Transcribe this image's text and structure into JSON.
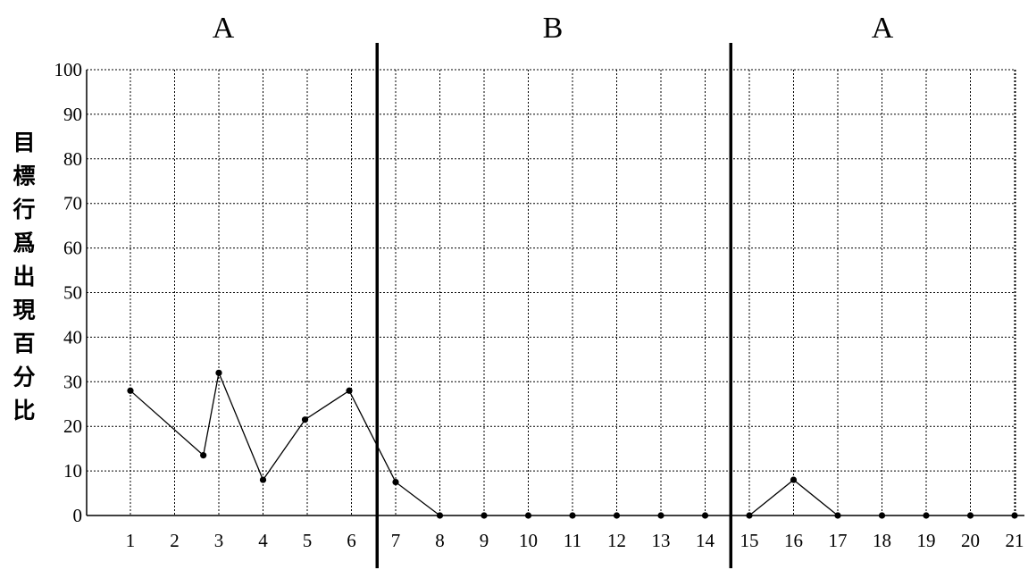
{
  "chart_data": {
    "type": "line",
    "phases": [
      {
        "label": "A",
        "from": 1,
        "to": 6
      },
      {
        "label": "B",
        "from": 7,
        "to": 14
      },
      {
        "label": "A",
        "from": 15,
        "to": 21
      }
    ],
    "phase_dividers_between": [
      [
        6,
        7
      ],
      [
        14,
        15
      ]
    ],
    "ylabel": "目標行爲出現百分比",
    "xlabel": "",
    "ylim": [
      0,
      100
    ],
    "yticks": [
      0,
      10,
      20,
      30,
      40,
      50,
      60,
      70,
      80,
      90,
      100
    ],
    "xticks": [
      1,
      2,
      3,
      4,
      5,
      6,
      7,
      8,
      9,
      10,
      11,
      12,
      13,
      14,
      15,
      16,
      17,
      18,
      19,
      20,
      21
    ],
    "grid": true,
    "series": [
      {
        "points": [
          {
            "x": 1,
            "y": 28
          },
          {
            "x": 2.65,
            "y": 13.5
          },
          {
            "x": 3,
            "y": 32
          },
          {
            "x": 4,
            "y": 8
          },
          {
            "x": 4.95,
            "y": 21.5
          },
          {
            "x": 5.95,
            "y": 28
          },
          {
            "x": 7,
            "y": 7.5
          },
          {
            "x": 8,
            "y": 0
          },
          {
            "x": 9,
            "y": 0
          },
          {
            "x": 10,
            "y": 0
          },
          {
            "x": 11,
            "y": 0
          },
          {
            "x": 12,
            "y": 0
          },
          {
            "x": 13,
            "y": 0
          },
          {
            "x": 14,
            "y": 0
          },
          {
            "x": 15,
            "y": 0
          },
          {
            "x": 16,
            "y": 8
          },
          {
            "x": 17,
            "y": 0
          },
          {
            "x": 18,
            "y": 0
          },
          {
            "x": 19,
            "y": 0
          },
          {
            "x": 20,
            "y": 0
          },
          {
            "x": 21,
            "y": 0
          }
        ],
        "connected_groups": [
          [
            1,
            2,
            3,
            4,
            5,
            6,
            7,
            8
          ],
          [
            15,
            16,
            17
          ]
        ],
        "color": "#000000"
      }
    ]
  }
}
